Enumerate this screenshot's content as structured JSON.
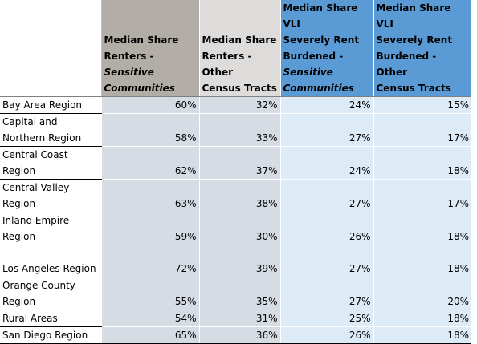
{
  "table": {
    "headers": [
      {
        "lines": []
      },
      {
        "lines": [
          {
            "text": "Median Share",
            "italic": false
          },
          {
            "text": "Renters -",
            "italic": false
          },
          {
            "text": "Sensitive",
            "italic": true
          },
          {
            "text": "Communities",
            "italic": true
          }
        ]
      },
      {
        "lines": [
          {
            "text": "Median Share",
            "italic": false
          },
          {
            "text": "Renters - Other",
            "italic": false
          },
          {
            "text": "Census Tracts",
            "italic": false
          }
        ]
      },
      {
        "lines": [
          {
            "text": "Median Share VLI",
            "italic": false
          },
          {
            "text": "Severely Rent",
            "italic": false
          },
          {
            "text": "Burdened -",
            "italic": false
          },
          {
            "text": "Sensitive",
            "italic": true
          },
          {
            "text": "Communities",
            "italic": true
          }
        ]
      },
      {
        "lines": [
          {
            "text": "Median Share VLI",
            "italic": false
          },
          {
            "text": "Severely Rent",
            "italic": false
          },
          {
            "text": "Burdened - Other",
            "italic": false
          },
          {
            "text": "Census Tracts",
            "italic": false
          }
        ]
      }
    ],
    "rows": [
      {
        "region": "Bay Area Region",
        "values": [
          "60%",
          "32%",
          "24%",
          "15%"
        ]
      },
      {
        "region": "Capital and Northern Region",
        "values": [
          "58%",
          "33%",
          "27%",
          "17%"
        ]
      },
      {
        "region": "Central Coast Region",
        "values": [
          "62%",
          "37%",
          "24%",
          "18%"
        ]
      },
      {
        "region": "Central Valley Region",
        "values": [
          "63%",
          "38%",
          "27%",
          "17%"
        ]
      },
      {
        "region": "Inland Empire Region",
        "values": [
          "59%",
          "30%",
          "26%",
          "18%"
        ]
      },
      {
        "region": "Los Angeles Region",
        "values": [
          "72%",
          "39%",
          "27%",
          "18%"
        ]
      },
      {
        "region": "Orange County Region",
        "values": [
          "55%",
          "35%",
          "27%",
          "20%"
        ]
      },
      {
        "region": "Rural Areas",
        "values": [
          "54%",
          "31%",
          "25%",
          "18%"
        ]
      },
      {
        "region": "San Diego Region",
        "values": [
          "65%",
          "36%",
          "26%",
          "18%"
        ]
      }
    ]
  },
  "colors": {
    "renters_header": "#b3ada7",
    "renters_other_header": "#dedcdb",
    "vli_header": "#5b9bd5",
    "renters_cells": "#d6dce4",
    "vli_cells": "#ddebf7"
  }
}
